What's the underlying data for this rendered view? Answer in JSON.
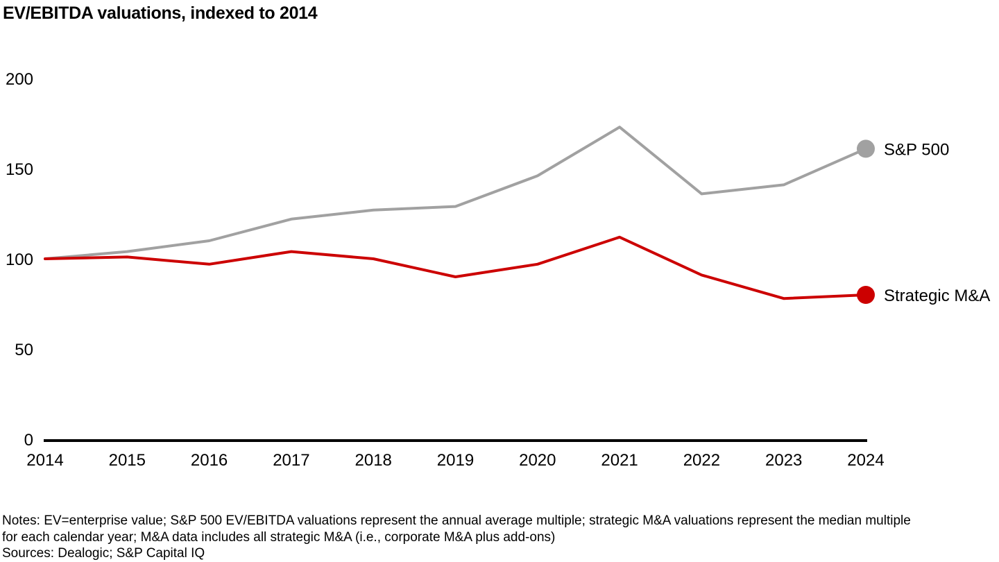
{
  "page": {
    "title": "EV/EBITDA valuations, indexed to 2014",
    "notes": {
      "line1": "Notes: EV=enterprise value; S&P 500 EV/EBITDA valuations represent the annual average multiple; strategic M&A valuations represent the median multiple",
      "line2": "for each calendar year; M&A data includes all strategic M&A (i.e., corporate M&A plus add-ons)",
      "sources": "Sources: Dealogic; S&P Capital IQ"
    }
  },
  "colors": {
    "sp500_gray": "#a1a1a1",
    "strategic_red": "#cc0000",
    "axis_black": "#000000",
    "text_black": "#000000"
  },
  "chart_data": {
    "type": "line",
    "title": "EV/EBITDA valuations, indexed to 2014",
    "x": [
      2014,
      2015,
      2016,
      2017,
      2018,
      2019,
      2020,
      2021,
      2022,
      2023,
      2024
    ],
    "series": [
      {
        "name": "S&P 500",
        "color": "#a1a1a1",
        "values": [
          100,
          104,
          110,
          122,
          127,
          129,
          146,
          173,
          136,
          141,
          161
        ]
      },
      {
        "name": "Strategic M&A",
        "color": "#cc0000",
        "values": [
          100,
          101,
          97,
          104,
          100,
          90,
          97,
          112,
          91,
          78,
          80
        ]
      }
    ],
    "xlabel": "",
    "ylabel": "",
    "ylim": [
      0,
      200
    ],
    "yticks": [
      0,
      50,
      100,
      150,
      200
    ],
    "grid": false,
    "legend_position": "end-of-line",
    "end_markers": true,
    "baseline_index": 100
  }
}
